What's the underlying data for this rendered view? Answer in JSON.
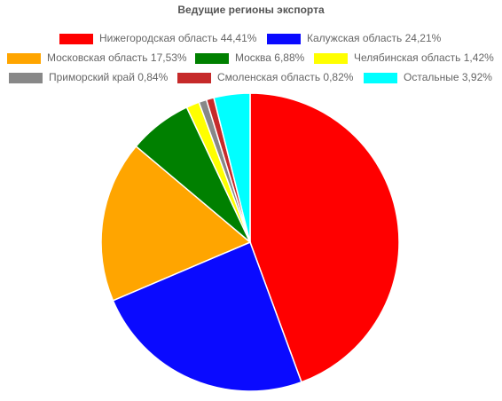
{
  "chart_data": {
    "type": "pie",
    "title": "Ведущие регионы экспорта",
    "categories": [
      "Нижегородская область 44,41%",
      "Калужская область 24,21%",
      "Московская область 17,53%",
      "Москва 6,88%",
      "Челябинская область 1,42%",
      "Приморский край 0,84%",
      "Смоленская область 0,82%",
      "Остальные 3,92%"
    ],
    "values": [
      44.41,
      24.21,
      17.53,
      6.88,
      1.42,
      0.84,
      0.82,
      3.92
    ],
    "colors": [
      "#ff0000",
      "#0a0aff",
      "#ffa500",
      "#008000",
      "#ffff00",
      "#888888",
      "#c62a2a",
      "#00ffff"
    ]
  }
}
